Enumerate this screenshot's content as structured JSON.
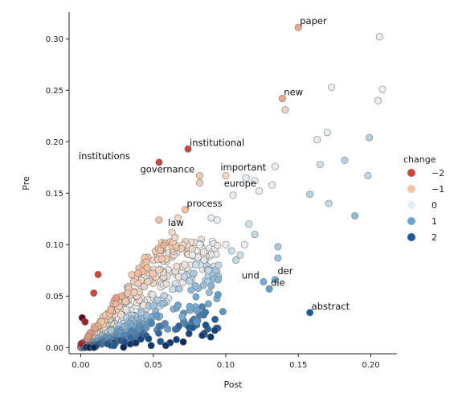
{
  "chart_data": {
    "type": "scatter",
    "xlabel": "Post",
    "ylabel": "Pre",
    "xlim": [
      -0.008,
      0.218
    ],
    "ylim": [
      -0.006,
      0.326
    ],
    "xticks": [
      "0.00",
      "0.05",
      "0.10",
      "0.15",
      "0.20"
    ],
    "xtick_values": [
      0,
      0.05,
      0.1,
      0.15,
      0.2
    ],
    "yticks": [
      "0.00",
      "0.05",
      "0.10",
      "0.15",
      "0.20",
      "0.25",
      "0.30"
    ],
    "ytick_values": [
      0,
      0.05,
      0.1,
      0.15,
      0.2,
      0.25,
      0.3
    ],
    "grid": false,
    "legend": {
      "title": "change",
      "position": "right",
      "entries": [
        {
          "label": "−2",
          "value": -2,
          "color": "#c8463c"
        },
        {
          "label": "−1",
          "value": -1,
          "color": "#f3c3a3"
        },
        {
          "label": "0",
          "value": 0,
          "color": "#e6eef3"
        },
        {
          "label": "1",
          "value": 1,
          "color": "#6aa6d1"
        },
        {
          "label": "2",
          "value": 2,
          "color": "#1c5a98"
        }
      ]
    },
    "colormap": {
      "stops": [
        {
          "change": -3,
          "color": "#67001f"
        },
        {
          "change": -2,
          "color": "#c8463c"
        },
        {
          "change": -1,
          "color": "#f3c3a3"
        },
        {
          "change": 0,
          "color": "#e8eef2"
        },
        {
          "change": 1,
          "color": "#6aa6d1"
        },
        {
          "change": 2,
          "color": "#1c5a98"
        },
        {
          "change": 3,
          "color": "#0a2a5c"
        }
      ]
    },
    "points": [
      {
        "x": 0.15,
        "y": 0.311,
        "c": -1.2,
        "label": "paper"
      },
      {
        "x": 0.206,
        "y": 0.302,
        "c": 0
      },
      {
        "x": 0.139,
        "y": 0.242,
        "c": -1.2,
        "label": "new"
      },
      {
        "x": 0.173,
        "y": 0.253,
        "c": 0
      },
      {
        "x": 0.208,
        "y": 0.251,
        "c": 0
      },
      {
        "x": 0.205,
        "y": 0.24,
        "c": 0
      },
      {
        "x": 0.141,
        "y": 0.231,
        "c": -0.6
      },
      {
        "x": 0.17,
        "y": 0.209,
        "c": 0
      },
      {
        "x": 0.199,
        "y": 0.204,
        "c": 0.4
      },
      {
        "x": 0.163,
        "y": 0.202,
        "c": 0
      },
      {
        "x": 0.074,
        "y": 0.193,
        "c": -2,
        "label": "institutional"
      },
      {
        "x": 0.182,
        "y": 0.182,
        "c": 0.4
      },
      {
        "x": 0.054,
        "y": 0.18,
        "c": -2,
        "label": "institutions",
        "label_dx": -100,
        "label_dy": -4
      },
      {
        "x": 0.165,
        "y": 0.178,
        "c": 0.2
      },
      {
        "x": 0.134,
        "y": 0.176,
        "c": 0,
        "label": "important",
        "label_dx": -68,
        "label_dy": 5
      },
      {
        "x": 0.198,
        "y": 0.167,
        "c": 0.3
      },
      {
        "x": 0.082,
        "y": 0.167,
        "c": -0.8,
        "label": "governance",
        "label_dx": -74,
        "label_dy": -4
      },
      {
        "x": 0.1,
        "y": 0.167,
        "c": -0.5
      },
      {
        "x": 0.114,
        "y": 0.165,
        "c": 0
      },
      {
        "x": 0.12,
        "y": 0.162,
        "c": 0
      },
      {
        "x": 0.082,
        "y": 0.16,
        "c": -0.8
      },
      {
        "x": 0.132,
        "y": 0.158,
        "c": 0,
        "label": "europe",
        "label_dx": -60,
        "label_dy": 2
      },
      {
        "x": 0.158,
        "y": 0.149,
        "c": 0.4
      },
      {
        "x": 0.171,
        "y": 0.14,
        "c": 0.3
      },
      {
        "x": 0.105,
        "y": 0.148,
        "c": 0
      },
      {
        "x": 0.123,
        "y": 0.152,
        "c": 0
      },
      {
        "x": 0.072,
        "y": 0.134,
        "c": -1,
        "label": "process"
      },
      {
        "x": 0.189,
        "y": 0.128,
        "c": 0.7
      },
      {
        "x": 0.054,
        "y": 0.124,
        "c": -1
      },
      {
        "x": 0.067,
        "y": 0.126,
        "c": -0.5
      },
      {
        "x": 0.063,
        "y": 0.112,
        "c": -0.5,
        "label": "law",
        "label_dx": -5,
        "label_dy": -8
      },
      {
        "x": 0.065,
        "y": 0.107,
        "c": -0.6
      },
      {
        "x": 0.09,
        "y": 0.126,
        "c": 0
      },
      {
        "x": 0.094,
        "y": 0.124,
        "c": 0
      },
      {
        "x": 0.116,
        "y": 0.12,
        "c": 0.2
      },
      {
        "x": 0.12,
        "y": 0.11,
        "c": 0.3
      },
      {
        "x": 0.136,
        "y": 0.098,
        "c": 0.5
      },
      {
        "x": 0.136,
        "y": 0.087,
        "c": 0.6
      },
      {
        "x": 0.126,
        "y": 0.064,
        "c": 0.9,
        "label": "und",
        "label_dx": -27,
        "label_dy": -4
      },
      {
        "x": 0.134,
        "y": 0.066,
        "c": 0.9,
        "label": "der",
        "label_dx": 3,
        "label_dy": -7
      },
      {
        "x": 0.13,
        "y": 0.057,
        "c": 1.1,
        "label": "die"
      },
      {
        "x": 0.158,
        "y": 0.034,
        "c": 2,
        "label": "abstract"
      },
      {
        "x": 0.098,
        "y": 0.035,
        "c": 1.2
      },
      {
        "x": 0.055,
        "y": 0.006,
        "c": 2
      },
      {
        "x": 0.09,
        "y": 0.06,
        "c": 0.8
      },
      {
        "x": 0.079,
        "y": 0.06,
        "c": 0.7
      },
      {
        "x": 0.012,
        "y": 0.071,
        "c": -2
      },
      {
        "x": 0.009,
        "y": 0.053,
        "c": -2
      },
      {
        "x": 0.001,
        "y": 0.029,
        "c": -3
      },
      {
        "x": 0.003,
        "y": 0.025,
        "c": -2.5
      },
      {
        "x": 0.023,
        "y": 0.002,
        "c": 2
      },
      {
        "x": 0.04,
        "y": 0.018,
        "c": 1.3
      },
      {
        "x": 0.06,
        "y": 0.018,
        "c": 1.1
      },
      {
        "x": 0.08,
        "y": 0.025,
        "c": 1.2
      },
      {
        "x": 0.08,
        "y": 0.036,
        "c": 1
      },
      {
        "x": 0.07,
        "y": 0.03,
        "c": 0.9
      },
      {
        "x": 0.1,
        "y": 0.1,
        "c": 0
      },
      {
        "x": 0.104,
        "y": 0.094,
        "c": 0.2
      },
      {
        "x": 0.11,
        "y": 0.09,
        "c": 0.2
      },
      {
        "x": 0.113,
        "y": 0.1,
        "c": 0
      },
      {
        "x": 0.107,
        "y": 0.085,
        "c": 0.3
      },
      {
        "x": 0.085,
        "y": 0.085,
        "c": 0.1
      },
      {
        "x": 0.095,
        "y": 0.08,
        "c": 0.3
      },
      {
        "x": 0.088,
        "y": 0.075,
        "c": 0.3
      },
      {
        "x": 0.082,
        "y": 0.1,
        "c": 0
      },
      {
        "x": 0.077,
        "y": 0.09,
        "c": 0
      },
      {
        "x": 0.078,
        "y": 0.072,
        "c": 0.5
      }
    ],
    "cloud": {
      "count": 680,
      "seed": 17,
      "extent_x": [
        0,
        0.095
      ],
      "extent_y": [
        0,
        0.105
      ]
    }
  }
}
